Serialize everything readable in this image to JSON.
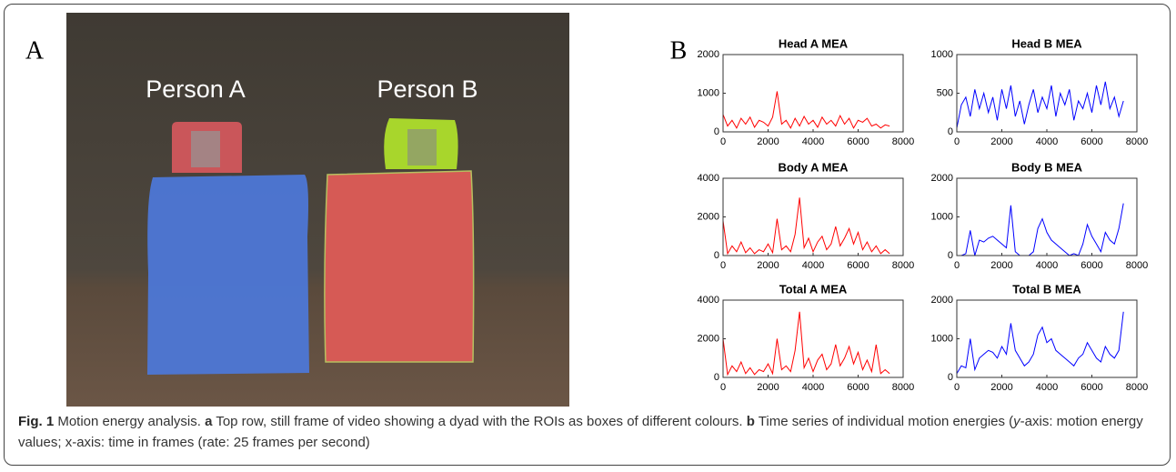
{
  "figure": {
    "panel_a_label": "A",
    "panel_b_label": "B",
    "person_a": "Person A",
    "person_b": "Person B",
    "caption": {
      "fig": "Fig. 1",
      "title": " Motion energy analysis. ",
      "a": "a",
      "a_text": " Top row, still frame of video showing a dyad with the ROIs as boxes of different colours. ",
      "b": "b",
      "b_text": " Time series of individual motion energies (",
      "y": "y",
      "rest": "-axis: motion energy values; x-axis: time in frames (rate: 25 frames per second)"
    }
  },
  "chart_data": [
    {
      "type": "line",
      "title": "Head A MEA",
      "color": "#ff0000",
      "xlim": [
        0,
        8000
      ],
      "xticks": [
        0,
        2000,
        4000,
        6000,
        8000
      ],
      "ylim": [
        0,
        2000
      ],
      "yticks": [
        0,
        1000,
        2000
      ],
      "x": [
        0,
        200,
        400,
        600,
        800,
        1000,
        1200,
        1400,
        1600,
        1800,
        2000,
        2200,
        2400,
        2600,
        2800,
        3000,
        3200,
        3400,
        3600,
        3800,
        4000,
        4200,
        4400,
        4600,
        4800,
        5000,
        5200,
        5400,
        5600,
        5800,
        6000,
        6200,
        6400,
        6600,
        6800,
        7000,
        7200,
        7400
      ],
      "values": [
        450,
        150,
        300,
        100,
        350,
        200,
        380,
        120,
        300,
        250,
        150,
        380,
        1050,
        200,
        300,
        100,
        350,
        150,
        400,
        200,
        300,
        120,
        380,
        200,
        300,
        150,
        420,
        200,
        350,
        100,
        300,
        250,
        350,
        150,
        200,
        100,
        180,
        150
      ]
    },
    {
      "type": "line",
      "title": "Head B MEA",
      "color": "#0000ff",
      "xlim": [
        0,
        8000
      ],
      "xticks": [
        0,
        2000,
        4000,
        6000,
        8000
      ],
      "ylim": [
        0,
        1000
      ],
      "yticks": [
        0,
        500,
        1000
      ],
      "x": [
        0,
        200,
        400,
        600,
        800,
        1000,
        1200,
        1400,
        1600,
        1800,
        2000,
        2200,
        2400,
        2600,
        2800,
        3000,
        3200,
        3400,
        3600,
        3800,
        4000,
        4200,
        4400,
        4600,
        4800,
        5000,
        5200,
        5400,
        5600,
        5800,
        6000,
        6200,
        6400,
        6600,
        6800,
        7000,
        7200,
        7400
      ],
      "values": [
        50,
        350,
        450,
        200,
        550,
        300,
        500,
        250,
        450,
        150,
        550,
        300,
        600,
        200,
        400,
        100,
        350,
        550,
        250,
        450,
        300,
        600,
        200,
        500,
        350,
        550,
        150,
        400,
        300,
        500,
        250,
        600,
        350,
        650,
        300,
        450,
        200,
        400
      ]
    },
    {
      "type": "line",
      "title": "Body A MEA",
      "color": "#ff0000",
      "xlim": [
        0,
        8000
      ],
      "xticks": [
        0,
        2000,
        4000,
        6000,
        8000
      ],
      "ylim": [
        0,
        4000
      ],
      "yticks": [
        0,
        2000,
        4000
      ],
      "x": [
        0,
        200,
        400,
        600,
        800,
        1000,
        1200,
        1400,
        1600,
        1800,
        2000,
        2200,
        2400,
        2600,
        2800,
        3000,
        3200,
        3400,
        3600,
        3800,
        4000,
        4200,
        4400,
        4600,
        4800,
        5000,
        5200,
        5400,
        5600,
        5800,
        6000,
        6200,
        6400,
        6600,
        6800,
        7000,
        7200,
        7400
      ],
      "values": [
        1800,
        100,
        500,
        200,
        700,
        150,
        400,
        100,
        300,
        200,
        600,
        150,
        1900,
        300,
        500,
        200,
        1100,
        3000,
        400,
        900,
        200,
        700,
        1000,
        300,
        600,
        1500,
        500,
        900,
        1400,
        600,
        1200,
        300,
        700,
        200,
        500,
        100,
        300,
        100
      ]
    },
    {
      "type": "line",
      "title": "Body B MEA",
      "color": "#0000ff",
      "xlim": [
        0,
        8000
      ],
      "xticks": [
        0,
        2000,
        4000,
        6000,
        8000
      ],
      "ylim": [
        0,
        2000
      ],
      "yticks": [
        0,
        1000,
        2000
      ],
      "x": [
        0,
        200,
        400,
        600,
        800,
        1000,
        1200,
        1400,
        1600,
        1800,
        2000,
        2200,
        2400,
        2600,
        2800,
        3000,
        3200,
        3400,
        3600,
        3800,
        4000,
        4200,
        4400,
        4600,
        4800,
        5000,
        5200,
        5400,
        5600,
        5800,
        6000,
        6200,
        6400,
        6600,
        6800,
        7000,
        7200,
        7400
      ],
      "values": [
        0,
        0,
        50,
        650,
        0,
        400,
        350,
        450,
        500,
        400,
        300,
        200,
        1300,
        100,
        0,
        0,
        0,
        100,
        700,
        950,
        600,
        400,
        300,
        200,
        100,
        0,
        50,
        0,
        300,
        800,
        500,
        300,
        100,
        600,
        400,
        300,
        700,
        1350
      ]
    },
    {
      "type": "line",
      "title": "Total A MEA",
      "color": "#ff0000",
      "xlim": [
        0,
        8000
      ],
      "xticks": [
        0,
        2000,
        4000,
        6000,
        8000
      ],
      "ylim": [
        0,
        4000
      ],
      "yticks": [
        0,
        2000,
        4000
      ],
      "x": [
        0,
        200,
        400,
        600,
        800,
        1000,
        1200,
        1400,
        1600,
        1800,
        2000,
        2200,
        2400,
        2600,
        2800,
        3000,
        3200,
        3400,
        3600,
        3800,
        4000,
        4200,
        4400,
        4600,
        4800,
        5000,
        5200,
        5400,
        5600,
        5800,
        6000,
        6200,
        6400,
        6600,
        6800,
        7000,
        7200,
        7400
      ],
      "values": [
        2000,
        150,
        600,
        300,
        800,
        200,
        500,
        150,
        400,
        300,
        700,
        200,
        2000,
        400,
        600,
        300,
        1400,
        3400,
        500,
        1000,
        300,
        900,
        1200,
        400,
        700,
        1700,
        600,
        1000,
        1600,
        700,
        1300,
        400,
        900,
        300,
        1700,
        200,
        400,
        200
      ]
    },
    {
      "type": "line",
      "title": "Total B MEA",
      "color": "#0000ff",
      "xlim": [
        0,
        8000
      ],
      "xticks": [
        0,
        2000,
        4000,
        6000,
        8000
      ],
      "ylim": [
        0,
        2000
      ],
      "yticks": [
        0,
        1000,
        2000
      ],
      "x": [
        0,
        200,
        400,
        600,
        800,
        1000,
        1200,
        1400,
        1600,
        1800,
        2000,
        2200,
        2400,
        2600,
        2800,
        3000,
        3200,
        3400,
        3600,
        3800,
        4000,
        4200,
        4400,
        4600,
        4800,
        5000,
        5200,
        5400,
        5600,
        5800,
        6000,
        6200,
        6400,
        6600,
        6800,
        7000,
        7200,
        7400
      ],
      "values": [
        100,
        300,
        250,
        1000,
        200,
        500,
        600,
        700,
        650,
        500,
        800,
        600,
        1400,
        700,
        500,
        300,
        400,
        600,
        1100,
        1300,
        900,
        1000,
        700,
        600,
        500,
        400,
        300,
        500,
        600,
        900,
        700,
        500,
        400,
        800,
        600,
        500,
        700,
        1700
      ]
    }
  ]
}
